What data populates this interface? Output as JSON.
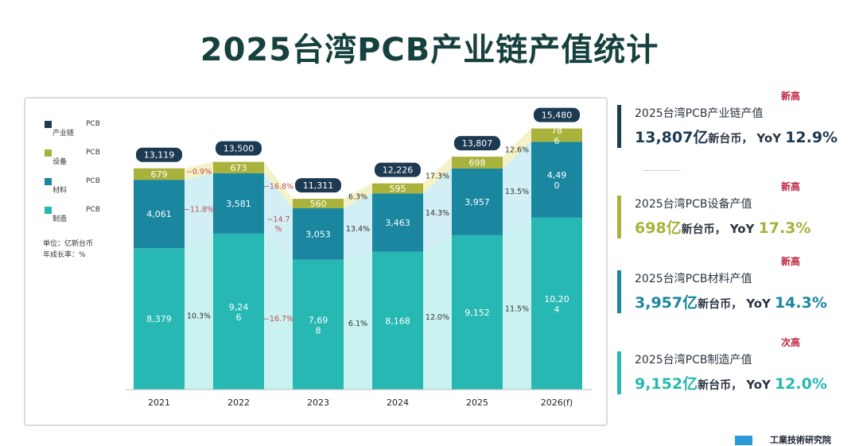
{
  "title": "2025台湾PCB产业链产值统计",
  "legend": {
    "pcb": "PCB",
    "items": [
      {
        "label": "产业链",
        "color": "#1c3a52"
      },
      {
        "label": "设备",
        "color": "#a9b23a"
      },
      {
        "label": "材料",
        "color": "#1a86a0"
      },
      {
        "label": "制造",
        "color": "#27b8b3"
      }
    ]
  },
  "unit_note": [
    "单位：亿新台币",
    "年成长率：%"
  ],
  "chart_data": {
    "type": "bar",
    "stacked": true,
    "categories": [
      "2021",
      "2022",
      "2023",
      "2024",
      "2025",
      "2026(f)"
    ],
    "series": [
      {
        "name": "制造",
        "values": [
          8379,
          9246,
          7698,
          8168,
          9152,
          10204
        ],
        "labels": [
          "8,379",
          "9,24\n6",
          "7,69\n8",
          "8,168",
          "9,152",
          "10,20\n4"
        ]
      },
      {
        "name": "材料",
        "values": [
          4061,
          3581,
          3053,
          3463,
          3957,
          4490
        ],
        "labels": [
          "4,061",
          "3,581",
          "3,053",
          "3,463",
          "3,957",
          "4,49\n0"
        ]
      },
      {
        "name": "设备",
        "values": [
          679,
          673,
          560,
          595,
          698,
          786
        ],
        "labels": [
          "679",
          "673",
          "560",
          "595",
          "698",
          "78\n6"
        ]
      }
    ],
    "totals": [
      "13,119",
      "13,500",
      "11,311",
      "12,226",
      "13,807",
      "15,480"
    ],
    "growth": {
      "设备": [
        "−0.9%",
        "−16.8%",
        "6.3%",
        "17.3%",
        "12.6%"
      ],
      "材料": [
        "−11.8%",
        "−14.7\n%",
        "13.4%",
        "14.3%",
        "13.5%"
      ],
      "制造": [
        "10.3%",
        "−16.7%",
        "6.1%",
        "12.0%",
        "11.5%"
      ]
    },
    "ylim": [
      0,
      16500
    ]
  },
  "side": [
    {
      "badge": "新高",
      "label": "2025台湾PCB产业链产值",
      "number": "13,807亿",
      "unit": "新台币，",
      "yoy_label": "YoY",
      "yoy": "12.9%",
      "color": "#1c3a52"
    },
    {
      "badge": "新高",
      "label": "2025台湾PCB设备产值",
      "number": "698亿",
      "unit": "新台币，",
      "yoy_label": "YoY",
      "yoy": "17.3%",
      "color": "#a9b23a"
    },
    {
      "badge": "新高",
      "label": "2025台湾PCB材料产值",
      "number": "3,957亿",
      "unit": "新台币，",
      "yoy_label": "YoY",
      "yoy": "14.3%",
      "color": "#1a86a0"
    },
    {
      "badge": "次高",
      "label": "2025台湾PCB制造产值",
      "number": "9,152亿",
      "unit": "新台币，",
      "yoy_label": "YoY",
      "yoy": "12.0%",
      "color": "#27b8b3"
    }
  ],
  "source": "工業技術研究院"
}
